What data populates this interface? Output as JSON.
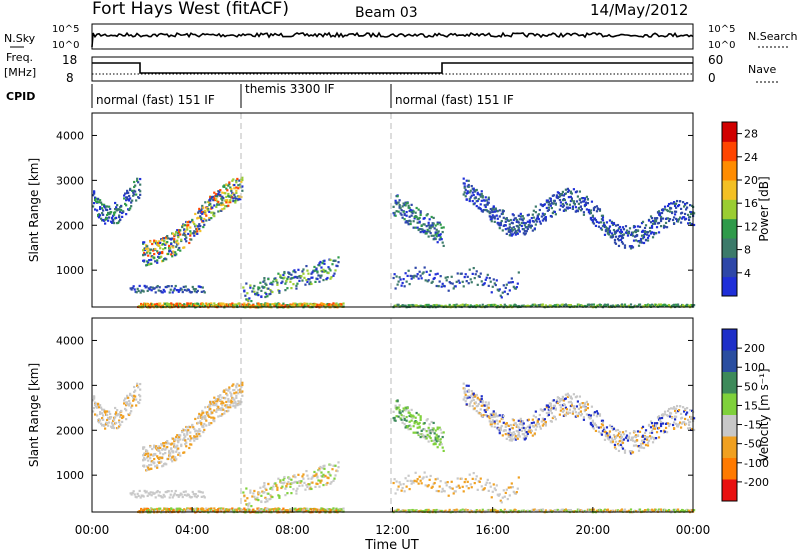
{
  "header": {
    "station": "Fort Hays West (fitACF)",
    "beam": "Beam 03",
    "date": "14/May/2012"
  },
  "noise_panel": {
    "left_label": "N.Sky",
    "right_label": "N.Search",
    "left_ticks": [
      "10^5",
      "10^0"
    ],
    "right_ticks": [
      "10^5",
      "10^0"
    ]
  },
  "freq_panel": {
    "left_label_1": "Freq.",
    "left_label_2": "[MHz]",
    "right_label": "Nave",
    "left_ticks": [
      "18",
      "8"
    ],
    "right_ticks": [
      "60",
      "0"
    ]
  },
  "cpid_panel": {
    "label": "CPID",
    "segments": [
      {
        "name": "normal (fast) 151 IF",
        "start_h": 0,
        "end_h": 6
      },
      {
        "name": "themis 3300 IF",
        "start_h": 6,
        "end_h": 12
      },
      {
        "name": "normal (fast) 151 IF",
        "start_h": 12,
        "end_h": 24
      }
    ]
  },
  "colors": {
    "power": [
      "#1f2fd8",
      "#2e47a8",
      "#3c7a6a",
      "#2f9a4a",
      "#9acd32",
      "#f3c024",
      "#ff8c00",
      "#ff4500",
      "#d10000"
    ],
    "velocity": [
      "#1e2fc8",
      "#2a4ea0",
      "#3d8a5a",
      "#7fd13b",
      "#c8c8c8",
      "#f0a020",
      "#ff7a00",
      "#e81010"
    ]
  },
  "chart_data": [
    {
      "type": "heatmap",
      "title": "Power",
      "ylabel": "Slant Range [km]",
      "xlabel": "",
      "ylim": [
        180,
        4500
      ],
      "xlim": [
        0,
        24
      ],
      "y_ticks": [
        1000,
        2000,
        3000,
        4000
      ],
      "colorbar": {
        "label": "Power [dB]",
        "ticks": [
          "4",
          "8",
          "12",
          "16",
          "20",
          "24",
          "28"
        ],
        "range": [
          0,
          30
        ]
      }
    },
    {
      "type": "heatmap",
      "title": "Velocity",
      "ylabel": "Slant Range [km]",
      "xlabel": "Time UT",
      "ylim": [
        180,
        4500
      ],
      "xlim": [
        0,
        24
      ],
      "y_ticks": [
        1000,
        2000,
        3000,
        4000
      ],
      "x_ticks": [
        "00:00",
        "04:00",
        "08:00",
        "12:00",
        "16:00",
        "20:00",
        "00:00"
      ],
      "colorbar": {
        "label": "Velocity [m s⁻¹]",
        "ticks": [
          "200",
          "100",
          "50",
          "15",
          "-15",
          "-50",
          "-100",
          "-200"
        ]
      }
    }
  ]
}
